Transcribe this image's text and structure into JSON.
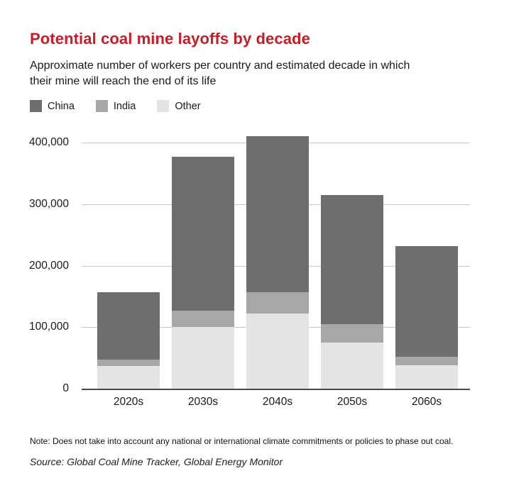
{
  "header": {
    "title": "Potential coal mine layoffs by decade",
    "subtitle_lines": [
      "Approximate number of workers per country and estimated decade in which",
      "their mine will reach the end of its life"
    ]
  },
  "legend": [
    "China",
    "India",
    "Other"
  ],
  "chart_data": {
    "type": "bar",
    "stacked": true,
    "title": "Potential coal mine layoffs by decade",
    "xlabel": "",
    "ylabel": "Approximate number of workers",
    "categories": [
      "2020s",
      "2030s",
      "2040s",
      "2050s",
      "2060s"
    ],
    "series": [
      {
        "name": "China",
        "color": "#6e6e6e",
        "values": [
          110000,
          250000,
          253000,
          210000,
          180000
        ]
      },
      {
        "name": "India",
        "color": "#a7a7a7",
        "values": [
          10000,
          27000,
          35000,
          30000,
          14000
        ]
      },
      {
        "name": "Other",
        "color": "#e4e4e4",
        "values": [
          37000,
          100000,
          122000,
          75000,
          38000
        ]
      }
    ],
    "totals": [
      157000,
      377000,
      410000,
      315000,
      232000
    ],
    "stack_order_bottom_to_top": [
      "Other",
      "India",
      "China"
    ],
    "ylim": [
      0,
      400000
    ],
    "yticks": [
      0,
      100000,
      200000,
      300000,
      400000
    ],
    "ytick_labels": [
      "0",
      "100,000",
      "200,000",
      "300,000",
      "400,000"
    ],
    "grid": true,
    "legend_position": "top-left"
  },
  "footer": {
    "note": "Note: Does not take into account any national or international climate commitments or policies to phase out coal.",
    "source": "Source: Global Coal Mine Tracker, Global Energy Monitor"
  },
  "colors": {
    "title": "#c41e28",
    "text": "#1a1a1a",
    "gridline": "#c7c7c7",
    "baseline": "#4b4b4b",
    "background": "#ffffff"
  }
}
